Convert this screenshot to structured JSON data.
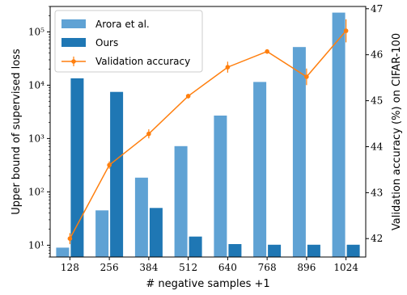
{
  "chart_data": {
    "type": "bar",
    "categories": [
      "128",
      "256",
      "384",
      "512",
      "640",
      "768",
      "896",
      "1024"
    ],
    "xlabel": "# negative samples +1",
    "ylabel": "Upper bound of supervised loss",
    "ylabel_right": "Validation accuracy (%) on CIFAR-100",
    "y_scale": "log",
    "ylim": [
      6,
      300000
    ],
    "y_ticks": [
      {
        "value": 10,
        "label": "10¹"
      },
      {
        "value": 100,
        "label": "10²"
      },
      {
        "value": 1000,
        "label": "10³"
      },
      {
        "value": 10000,
        "label": "10⁴"
      },
      {
        "value": 100000,
        "label": "10⁵"
      }
    ],
    "y2lim": [
      41.6,
      47.05
    ],
    "y2_ticks": [
      42,
      43,
      44,
      45,
      46,
      47
    ],
    "legend_position": "top-left",
    "series": [
      {
        "name": "Arora et al.",
        "kind": "bar",
        "color": "#5fa2d4",
        "values": [
          9,
          45,
          185,
          720,
          2700,
          11500,
          52000,
          230000
        ]
      },
      {
        "name": "Ours",
        "kind": "bar",
        "color": "#1f77b4",
        "values": [
          13500,
          7500,
          50,
          14.5,
          10.5,
          10.2,
          10.2,
          10.2
        ]
      },
      {
        "name": "Validation accuracy",
        "kind": "line",
        "axis": "right",
        "color": "#ff7f0e",
        "values": [
          42.0,
          43.6,
          44.28,
          45.1,
          45.73,
          46.07,
          45.52,
          46.52
        ],
        "errors": [
          0.12,
          0.08,
          0.1,
          0.05,
          0.12,
          0.05,
          0.18,
          0.25
        ]
      }
    ]
  }
}
